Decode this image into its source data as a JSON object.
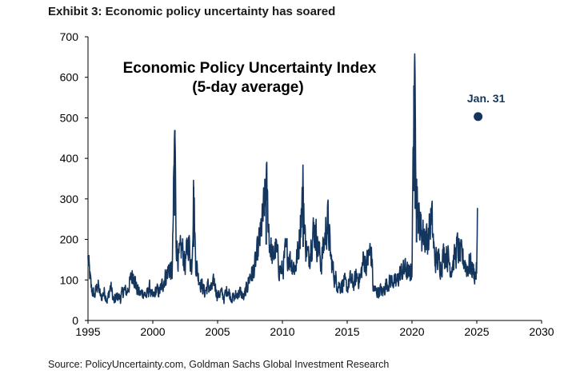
{
  "exhibit_title": "Exhibit 3: Economic policy uncertainty has soared",
  "source": "Source: PolicyUncertainty.com, Goldman Sachs Global Investment Research",
  "colors": {
    "series": "#14365e",
    "axis": "#000000",
    "text": "#1a1a1a"
  },
  "chart_data": {
    "type": "line",
    "title": "Economic Policy Uncertainty Index",
    "subtitle": "(5-day average)",
    "xlabel": "",
    "ylabel": "",
    "xlim": [
      1995,
      2030
    ],
    "ylim": [
      0,
      700
    ],
    "xticks": [
      1995,
      2000,
      2005,
      2010,
      2015,
      2020,
      2025,
      2030
    ],
    "yticks": [
      0,
      100,
      200,
      300,
      400,
      500,
      600,
      700
    ],
    "grid": false,
    "series": [
      {
        "name": "Economic Policy Uncertainty Index (5-day average)",
        "x": [
          1995.0,
          1995.25,
          1995.5,
          1995.75,
          1996.0,
          1996.25,
          1996.5,
          1996.75,
          1997.0,
          1997.25,
          1997.5,
          1997.75,
          1998.0,
          1998.25,
          1998.5,
          1998.75,
          1999.0,
          1999.25,
          1999.5,
          1999.75,
          2000.0,
          2000.25,
          2000.5,
          2000.75,
          2001.0,
          2001.25,
          2001.5,
          2001.7,
          2001.8,
          2002.0,
          2002.25,
          2002.5,
          2002.75,
          2003.0,
          2003.15,
          2003.3,
          2003.5,
          2003.75,
          2004.0,
          2004.25,
          2004.5,
          2004.75,
          2005.0,
          2005.25,
          2005.5,
          2005.75,
          2006.0,
          2006.25,
          2006.5,
          2006.75,
          2007.0,
          2007.25,
          2007.5,
          2007.75,
          2008.0,
          2008.25,
          2008.5,
          2008.75,
          2009.0,
          2009.25,
          2009.5,
          2009.75,
          2010.0,
          2010.25,
          2010.5,
          2010.75,
          2011.0,
          2011.25,
          2011.6,
          2011.75,
          2012.0,
          2012.25,
          2012.5,
          2012.75,
          2013.0,
          2013.25,
          2013.5,
          2013.75,
          2014.0,
          2014.25,
          2014.5,
          2014.75,
          2015.0,
          2015.25,
          2015.5,
          2015.75,
          2016.0,
          2016.25,
          2016.5,
          2016.75,
          2016.9,
          2017.0,
          2017.25,
          2017.5,
          2017.75,
          2018.0,
          2018.25,
          2018.5,
          2018.75,
          2019.0,
          2019.25,
          2019.5,
          2019.75,
          2020.0,
          2020.15,
          2020.25,
          2020.35,
          2020.5,
          2020.75,
          2021.0,
          2021.25,
          2021.5,
          2021.75,
          2022.0,
          2022.25,
          2022.5,
          2022.75,
          2023.0,
          2023.25,
          2023.5,
          2023.75,
          2024.0,
          2024.25,
          2024.5,
          2024.75,
          2024.9,
          2025.0,
          2025.08
        ],
        "values": [
          150,
          80,
          60,
          90,
          55,
          70,
          50,
          85,
          45,
          60,
          55,
          75,
          70,
          95,
          120,
          80,
          65,
          70,
          60,
          80,
          55,
          75,
          70,
          90,
          110,
          130,
          120,
          470,
          200,
          150,
          180,
          140,
          200,
          130,
          330,
          150,
          110,
          90,
          70,
          85,
          75,
          95,
          60,
          70,
          55,
          80,
          60,
          55,
          65,
          70,
          55,
          80,
          110,
          120,
          150,
          200,
          250,
          340,
          200,
          150,
          180,
          130,
          120,
          170,
          160,
          140,
          130,
          180,
          330,
          200,
          150,
          200,
          230,
          180,
          140,
          200,
          250,
          150,
          110,
          90,
          85,
          95,
          80,
          100,
          90,
          110,
          100,
          150,
          140,
          170,
          160,
          80,
          70,
          75,
          70,
          90,
          95,
          100,
          90,
          110,
          120,
          130,
          110,
          130,
          580,
          500,
          350,
          250,
          220,
          210,
          200,
          260,
          150,
          150,
          140,
          170,
          160,
          130,
          150,
          180,
          160,
          150,
          130,
          140,
          120,
          110,
          130,
          290
        ]
      }
    ],
    "annotations": [
      {
        "label": "Jan. 31",
        "x": 2025.1,
        "y": 503
      }
    ]
  }
}
